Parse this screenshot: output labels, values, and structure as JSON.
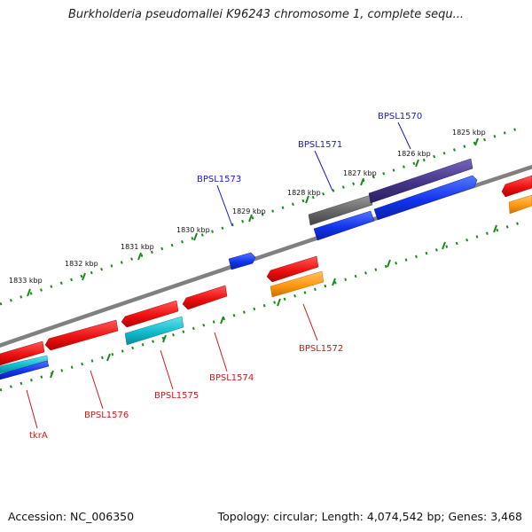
{
  "title": "Burkholderia pseudomallei K96243 chromosome 1, complete sequ...",
  "footer": {
    "accession": "Accession: NC_006350",
    "topology": "Topology: circular; Length: 4,074,542 bp; Genes: 3,468"
  },
  "colors": {
    "backbone": "#808080",
    "tick_dots": "#1a8a1a",
    "forward_label": "#1a1acc",
    "reverse_label": "#cc1a1a",
    "cds_red": "#ee1111",
    "cds_blue": "#1133ee",
    "cds_navy": "#443388",
    "cds_gray": "#666666",
    "cds_cyan": "#11bbcc",
    "cds_orange": "#ff9911"
  },
  "tick_labels": [
    "1825 kbp",
    "1826 kbp",
    "1827 kbp",
    "1828 kbp",
    "1829 kbp",
    "1830 kbp",
    "1831 kbp",
    "1832 kbp",
    "1833 kbp"
  ],
  "forward_genes": [
    "BPSL1570",
    "BPSL1571",
    "BPSL1573"
  ],
  "reverse_genes": [
    "BPSL1572",
    "BPSL1574",
    "BPSL1575",
    "BPSL1576",
    "tkrA"
  ]
}
